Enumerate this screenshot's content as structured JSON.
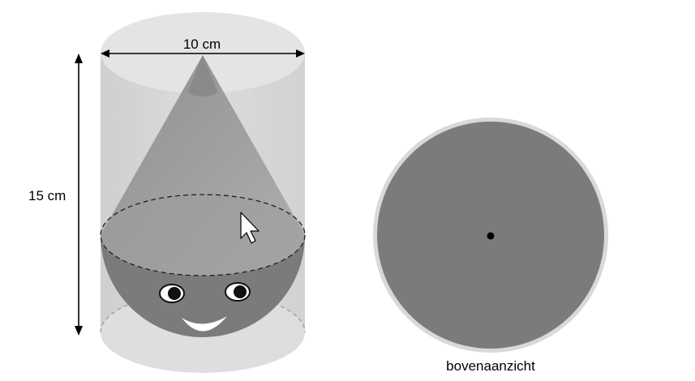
{
  "diagram": {
    "width_label": "10 cm",
    "height_label": "15 cm",
    "top_view_caption": "bovenaanzicht"
  },
  "colors": {
    "cylinder_fill": "#d9d9d9",
    "cylinder_top": "#e6e6e6",
    "cone_fill": "#8c8c8c",
    "sphere_fill": "#7a7a7a",
    "top_view_outer": "#d9d9d9",
    "top_view_inner": "#7b7b7b"
  }
}
